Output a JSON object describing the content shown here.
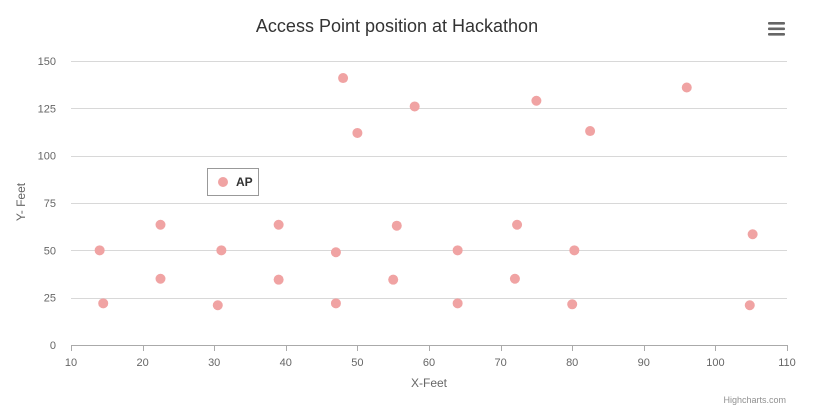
{
  "chart_data": {
    "type": "scatter",
    "title": "Access Point position at Hackathon",
    "xlabel": "X-Feet",
    "ylabel": "Y- Feet",
    "xlim": [
      10,
      110
    ],
    "ylim": [
      0,
      150
    ],
    "x_ticks": [
      10,
      20,
      30,
      40,
      50,
      60,
      70,
      80,
      90,
      100,
      110
    ],
    "y_ticks": [
      0,
      25,
      50,
      75,
      100,
      125,
      150
    ],
    "grid": "horizontal",
    "legend": "inside-upper-left",
    "series": [
      {
        "name": "AP",
        "color": "#f0a3a3",
        "points": [
          [
            14,
            50
          ],
          [
            14.5,
            22
          ],
          [
            22.5,
            63.5
          ],
          [
            22.5,
            35
          ],
          [
            30.5,
            21
          ],
          [
            31,
            50
          ],
          [
            39,
            63.5
          ],
          [
            39,
            34.5
          ],
          [
            47,
            22
          ],
          [
            47,
            49
          ],
          [
            48,
            141
          ],
          [
            50,
            112
          ],
          [
            55,
            34.5
          ],
          [
            55.5,
            63
          ],
          [
            58,
            126
          ],
          [
            64,
            50
          ],
          [
            64,
            22
          ],
          [
            72,
            35
          ],
          [
            72.3,
            63.5
          ],
          [
            75,
            129
          ],
          [
            80,
            21.5
          ],
          [
            80.3,
            50
          ],
          [
            82.5,
            113
          ],
          [
            96,
            136
          ],
          [
            104.8,
            21
          ],
          [
            105.2,
            58.5
          ]
        ]
      }
    ]
  },
  "credits": "Highcharts.com",
  "menu_icon": "hamburger-menu-icon"
}
